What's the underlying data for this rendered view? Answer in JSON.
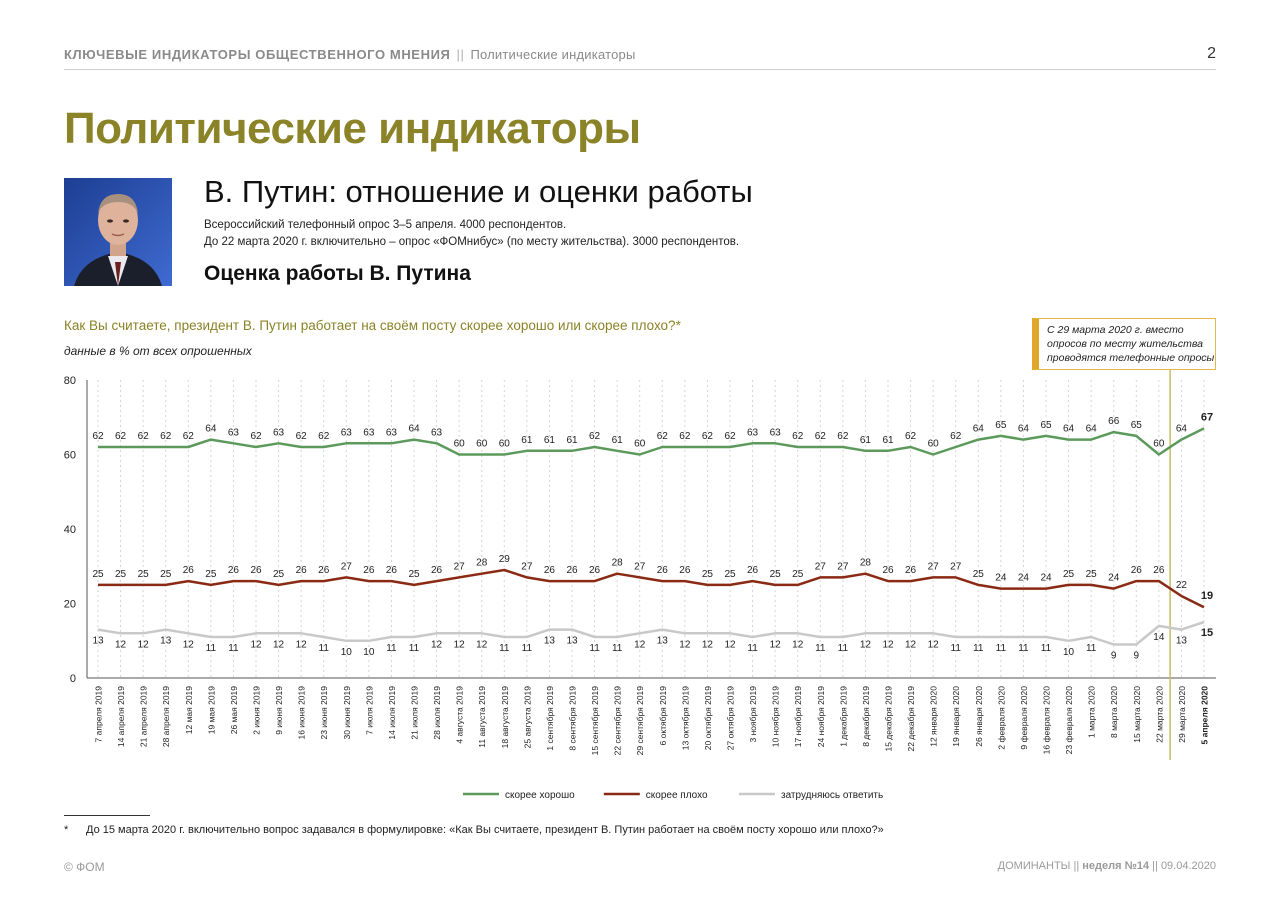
{
  "header": {
    "section": "КЛЮЧЕВЫЕ ИНДИКАТОРЫ ОБЩЕСТВЕННОГО МНЕНИЯ",
    "separator": "||",
    "subsection": "Политические индикаторы",
    "page_number": "2"
  },
  "page_title": "Политические индикаторы",
  "section_title": "В. Путин: отношение и оценки работы",
  "survey_line1": "Всероссийский телефонный опрос 3–5 апреля. 4000 респондентов.",
  "survey_line2": "До 22 марта 2020 г. включительно – опрос «ФОМнибус» (по месту жительства). 3000 респондентов.",
  "subsection_title": "Оценка работы В. Путина",
  "question": "Как Вы считаете, президент В. Путин работает на своём посту скорее хорошо или скорее плохо?*",
  "units_note": "данные в % от всех опрошенных",
  "method_note": "С 29 марта 2020 г. вместо опросов по месту жительства проводятся телефонные опросы",
  "footnote_mark": "*",
  "footnote": "До 15 марта 2020 г. включительно вопрос задавался в формулировке: «Как Вы считаете, президент В. Путин работает на своём посту хорошо или плохо?»",
  "footer_left": "© ФОМ",
  "footer_right_brand": "ДОМИНАНТЫ",
  "footer_right_sep": "||",
  "footer_right_issue": "неделя №14",
  "footer_right_date": "09.04.2020",
  "colors": {
    "olive": "#8b8327",
    "good": "#5c9a5c",
    "bad": "#8b2a14",
    "unsure": "#c8c8c8",
    "method_line": "#c9bd67"
  },
  "chart_data": {
    "type": "line",
    "ylim": [
      0,
      80
    ],
    "yticks": [
      0,
      20,
      40,
      60,
      80
    ],
    "grid": "vertical dashed",
    "legend_position": "bottom-center",
    "x": [
      "7 апреля 2019",
      "14 апреля 2019",
      "21 апреля 2019",
      "28 апреля 2019",
      "12 мая 2019",
      "19 мая 2019",
      "26 мая 2019",
      "2 июня 2019",
      "9 июня 2019",
      "16 июня 2019",
      "23 июня 2019",
      "30 июня 2019",
      "7 июля 2019",
      "14 июля 2019",
      "21 июля 2019",
      "28 июля 2019",
      "4 августа 2019",
      "11 августа 2019",
      "18 августа 2019",
      "25 августа 2019",
      "1 сентября 2019",
      "8 сентября 2019",
      "15 сентября 2019",
      "22 сентября 2019",
      "29 сентября 2019",
      "6 октября 2019",
      "13 октября 2019",
      "20 октября 2019",
      "27 октября 2019",
      "3 ноября 2019",
      "10 ноября 2019",
      "17 ноября 2019",
      "24 ноября 2019",
      "1 декабря 2019",
      "8 декабря 2019",
      "15 декабря 2019",
      "22 декабря 2019",
      "12 января 2020",
      "19 января 2020",
      "26 января 2020",
      "2 февраля 2020",
      "9 февраля 2020",
      "16 февраля 2020",
      "23 февраля 2020",
      "1 марта 2020",
      "8 марта 2020",
      "15 марта 2020",
      "22 марта 2020",
      "29 марта 2020",
      "5 апреля 2020"
    ],
    "series": [
      {
        "name": "скорее хорошо",
        "color": "#5c9a5c",
        "values": [
          62,
          62,
          62,
          62,
          62,
          64,
          63,
          62,
          63,
          62,
          62,
          63,
          63,
          63,
          64,
          63,
          60,
          60,
          60,
          61,
          61,
          61,
          62,
          61,
          60,
          62,
          62,
          62,
          62,
          63,
          63,
          62,
          62,
          62,
          61,
          61,
          62,
          60,
          62,
          64,
          65,
          64,
          65,
          64,
          64,
          66,
          65,
          60,
          64,
          67
        ]
      },
      {
        "name": "скорее плохо",
        "color": "#8b2a14",
        "values": [
          25,
          25,
          25,
          25,
          26,
          25,
          26,
          26,
          25,
          26,
          26,
          27,
          26,
          26,
          25,
          26,
          27,
          28,
          29,
          27,
          26,
          26,
          26,
          28,
          27,
          26,
          26,
          25,
          25,
          26,
          25,
          25,
          27,
          27,
          28,
          26,
          26,
          27,
          27,
          25,
          24,
          24,
          24,
          25,
          25,
          24,
          26,
          26,
          22,
          19
        ]
      },
      {
        "name": "затрудняюсь ответить",
        "color": "#c8c8c8",
        "values": [
          13,
          12,
          12,
          13,
          12,
          11,
          11,
          12,
          12,
          12,
          11,
          10,
          10,
          11,
          11,
          12,
          12,
          12,
          11,
          11,
          13,
          13,
          11,
          11,
          12,
          13,
          12,
          12,
          12,
          11,
          12,
          12,
          11,
          11,
          12,
          12,
          12,
          12,
          11,
          11,
          11,
          11,
          11,
          10,
          11,
          9,
          9,
          14,
          13,
          15
        ]
      }
    ],
    "bold_last_point": true,
    "method_change_after": "22 марта 2020"
  }
}
